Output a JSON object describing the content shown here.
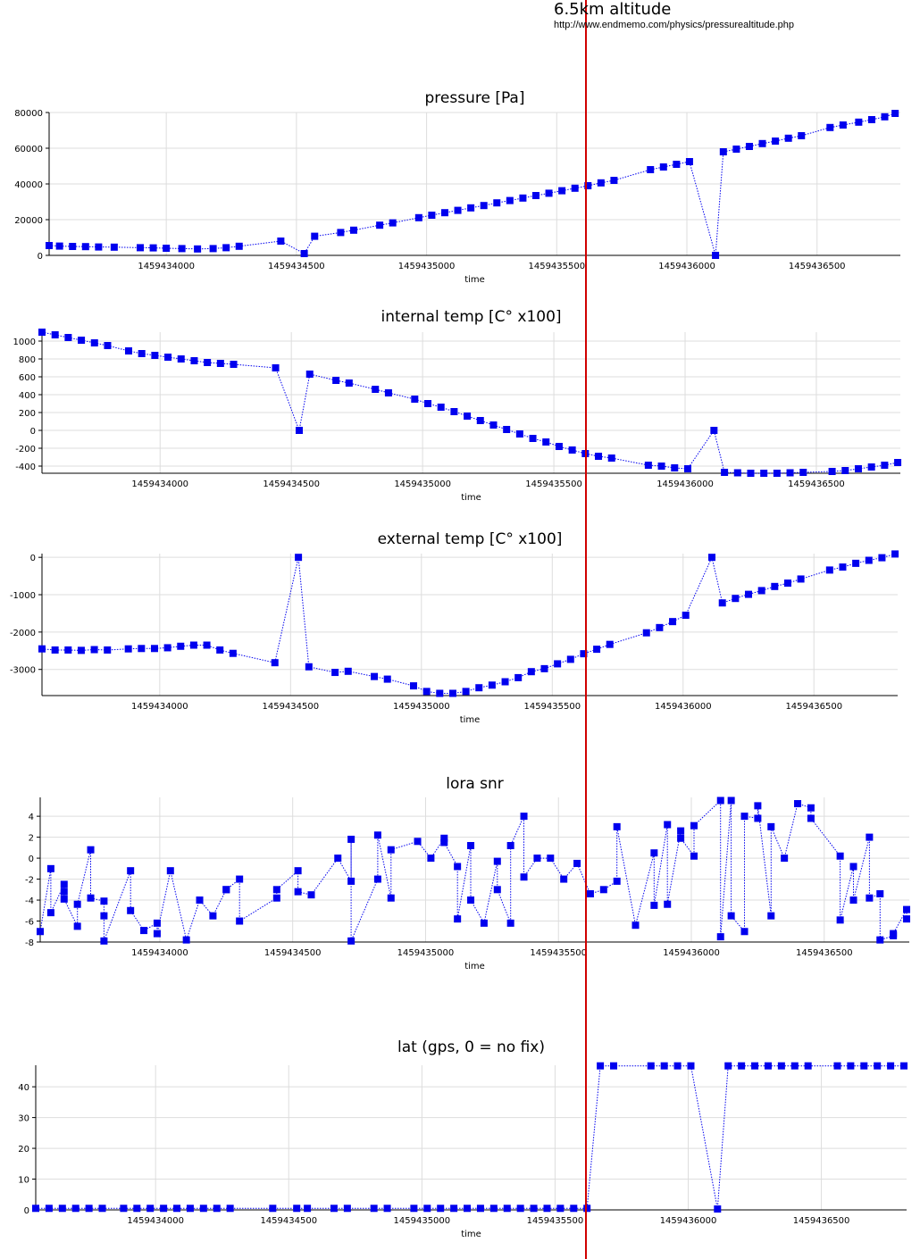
{
  "annotation": {
    "title": "6.5km altitude",
    "url": "http://www.endmemo.com/physics/pressurealtitude.php",
    "marker_x": 1459435600,
    "marker_color": "#d00000"
  },
  "style": {
    "series_color": "#0000ee",
    "grid_color": "#dddddd"
  },
  "chart_data": [
    {
      "type": "line",
      "title": "pressure [Pa]",
      "xlabel": "time",
      "ylabel": "",
      "grid": true,
      "xlim": [
        1459433550,
        1459436820
      ],
      "ylim": [
        0,
        80000
      ],
      "xticks": [
        1459434000,
        1459434500,
        1459435000,
        1459435500,
        1459436000,
        1459436500
      ],
      "xtick_labels": [
        "1459434000",
        "1459434500",
        "1459435000",
        "1459435500",
        "1459436000",
        "1459436500"
      ],
      "yticks": [
        0,
        20000,
        40000,
        60000,
        80000
      ],
      "ytick_labels": [
        "0",
        "20000",
        "40000",
        "60000",
        "80000"
      ],
      "series": [
        {
          "x": [
            1459433550,
            1459433590,
            1459433640,
            1459433690,
            1459433740,
            1459433800,
            1459433900,
            1459433950,
            1459434000,
            1459434060,
            1459434120,
            1459434180,
            1459434230,
            1459434280,
            1459434440,
            1459434530,
            1459434570,
            1459434670,
            1459434720,
            1459434820,
            1459434870,
            1459434970,
            1459435020,
            1459435070,
            1459435120,
            1459435170,
            1459435220,
            1459435270,
            1459435320,
            1459435370,
            1459435420,
            1459435470,
            1459435520,
            1459435570,
            1459435620,
            1459435670,
            1459435720,
            1459435860,
            1459435910,
            1459435960,
            1459436010,
            1459436110,
            1459436140,
            1459436190,
            1459436240,
            1459436290,
            1459436340,
            1459436390,
            1459436440,
            1459436550,
            1459436600,
            1459436660,
            1459436710,
            1459436760,
            1459436800
          ],
          "y": [
            5500,
            5200,
            5000,
            4900,
            4700,
            4600,
            4300,
            4200,
            4000,
            3800,
            3600,
            3800,
            4300,
            5100,
            8000,
            1000,
            10700,
            12800,
            14100,
            16900,
            18200,
            21100,
            22500,
            23900,
            25200,
            26600,
            27900,
            29400,
            30700,
            32100,
            33500,
            34800,
            36200,
            37600,
            39000,
            40600,
            42000,
            48000,
            49500,
            51000,
            52500,
            0,
            58000,
            59500,
            61000,
            62600,
            64000,
            65600,
            67000,
            71600,
            73000,
            74600,
            76000,
            77600,
            79500
          ]
        }
      ]
    },
    {
      "type": "line",
      "title": "internal temp [C° x100]",
      "xlabel": "time",
      "ylabel": "",
      "grid": true,
      "xlim": [
        1459433550,
        1459436820
      ],
      "ylim": [
        -480,
        1100
      ],
      "xticks": [
        1459434000,
        1459434500,
        1459435000,
        1459435500,
        1459436000,
        1459436500
      ],
      "xtick_labels": [
        "1459434000",
        "1459434500",
        "1459435000",
        "1459435500",
        "1459436000",
        "1459436500"
      ],
      "yticks": [
        -400,
        -200,
        0,
        200,
        400,
        600,
        800,
        1000
      ],
      "ytick_labels": [
        "-400",
        "-200",
        "0",
        "200",
        "400",
        "600",
        "800",
        "1000"
      ],
      "series": [
        {
          "x": [
            1459433550,
            1459433600,
            1459433650,
            1459433700,
            1459433750,
            1459433800,
            1459433880,
            1459433930,
            1459433980,
            1459434030,
            1459434080,
            1459434130,
            1459434180,
            1459434230,
            1459434280,
            1459434440,
            1459434530,
            1459434570,
            1459434670,
            1459434720,
            1459434820,
            1459434870,
            1459434970,
            1459435020,
            1459435070,
            1459435120,
            1459435170,
            1459435220,
            1459435270,
            1459435320,
            1459435370,
            1459435420,
            1459435470,
            1459435520,
            1459435570,
            1459435620,
            1459435670,
            1459435720,
            1459435860,
            1459435910,
            1459435960,
            1459436010,
            1459436110,
            1459436150,
            1459436200,
            1459436250,
            1459436300,
            1459436350,
            1459436400,
            1459436450,
            1459436560,
            1459436610,
            1459436660,
            1459436710,
            1459436760,
            1459436810
          ],
          "y": [
            1100,
            1070,
            1040,
            1010,
            980,
            950,
            890,
            860,
            840,
            820,
            800,
            780,
            760,
            750,
            740,
            700,
            0,
            630,
            560,
            530,
            460,
            420,
            350,
            300,
            260,
            210,
            160,
            110,
            60,
            10,
            -40,
            -90,
            -130,
            -180,
            -220,
            -260,
            -290,
            -310,
            -390,
            -400,
            -420,
            -430,
            0,
            -470,
            -475,
            -480,
            -480,
            -480,
            -475,
            -470,
            -460,
            -450,
            -430,
            -410,
            -390,
            -360
          ]
        }
      ]
    },
    {
      "type": "line",
      "title": "external temp [C° x100]",
      "xlabel": "time",
      "ylabel": "",
      "grid": true,
      "xlim": [
        1459433550,
        1459436820
      ],
      "ylim": [
        -3700,
        100
      ],
      "xticks": [
        1459434000,
        1459434500,
        1459435000,
        1459435500,
        1459436000,
        1459436500
      ],
      "xtick_labels": [
        "1459434000",
        "1459434500",
        "1459435000",
        "1459435500",
        "1459436000",
        "1459436500"
      ],
      "yticks": [
        -3000,
        -2000,
        -1000,
        0
      ],
      "ytick_labels": [
        "-3000",
        "-2000",
        "-1000",
        "0"
      ],
      "series": [
        {
          "x": [
            1459433550,
            1459433600,
            1459433650,
            1459433700,
            1459433750,
            1459433800,
            1459433880,
            1459433930,
            1459433980,
            1459434030,
            1459434080,
            1459434130,
            1459434180,
            1459434230,
            1459434280,
            1459434440,
            1459434530,
            1459434570,
            1459434670,
            1459434720,
            1459434820,
            1459434870,
            1459434970,
            1459435020,
            1459435070,
            1459435120,
            1459435170,
            1459435220,
            1459435270,
            1459435320,
            1459435370,
            1459435420,
            1459435470,
            1459435520,
            1459435570,
            1459435620,
            1459435670,
            1459435720,
            1459435860,
            1459435910,
            1459435960,
            1459436010,
            1459436110,
            1459436150,
            1459436200,
            1459436250,
            1459436300,
            1459436350,
            1459436400,
            1459436450,
            1459436560,
            1459436610,
            1459436660,
            1459436710,
            1459436760,
            1459436810
          ],
          "y": [
            -2450,
            -2480,
            -2480,
            -2490,
            -2470,
            -2480,
            -2450,
            -2440,
            -2440,
            -2420,
            -2380,
            -2350,
            -2350,
            -2480,
            -2570,
            -2820,
            0,
            -2930,
            -3080,
            -3050,
            -3190,
            -3260,
            -3440,
            -3590,
            -3640,
            -3640,
            -3590,
            -3490,
            -3420,
            -3330,
            -3220,
            -3060,
            -2980,
            -2850,
            -2730,
            -2580,
            -2460,
            -2330,
            -2020,
            -1880,
            -1720,
            -1550,
            0,
            -1220,
            -1100,
            -990,
            -890,
            -780,
            -690,
            -580,
            -340,
            -260,
            -160,
            -80,
            -10,
            90
          ]
        }
      ]
    },
    {
      "type": "line",
      "title": "lora snr",
      "xlabel": "time",
      "ylabel": "",
      "grid": true,
      "xlim": [
        1459433550,
        1459436820
      ],
      "ylim": [
        -8,
        5.8
      ],
      "xticks": [
        1459434000,
        1459434500,
        1459435000,
        1459435500,
        1459436000,
        1459436500
      ],
      "xtick_labels": [
        "1459434000",
        "1459434500",
        "1459435000",
        "1459435500",
        "1459436000",
        "1459436500"
      ],
      "yticks": [
        -8,
        -6,
        -4,
        -2,
        0,
        2,
        4
      ],
      "ytick_labels": [
        "-8",
        "-6",
        "-4",
        "-2",
        "0",
        "2",
        "4"
      ],
      "series": [
        {
          "x": [
            1459433550,
            1459433590,
            1459433590,
            1459433640,
            1459433640,
            1459433640,
            1459433690,
            1459433690,
            1459433740,
            1459433740,
            1459433790,
            1459433790,
            1459433790,
            1459433890,
            1459433890,
            1459433940,
            1459433990,
            1459433990,
            1459434040,
            1459434100,
            1459434150,
            1459434200,
            1459434250,
            1459434250,
            1459434300,
            1459434300,
            1459434440,
            1459434440,
            1459434520,
            1459434520,
            1459434570,
            1459434670,
            1459434720,
            1459434720,
            1459434720,
            1459434820,
            1459434820,
            1459434870,
            1459434870,
            1459434970,
            1459435020,
            1459435070,
            1459435070,
            1459435120,
            1459435120,
            1459435170,
            1459435170,
            1459435220,
            1459435270,
            1459435270,
            1459435320,
            1459435320,
            1459435370,
            1459435370,
            1459435420,
            1459435470,
            1459435520,
            1459435570,
            1459435620,
            1459435670,
            1459435720,
            1459435720,
            1459435790,
            1459435860,
            1459435860,
            1459435910,
            1459435910,
            1459435960,
            1459435960,
            1459436010,
            1459436010,
            1459436110,
            1459436110,
            1459436150,
            1459436150,
            1459436200,
            1459436200,
            1459436250,
            1459436250,
            1459436300,
            1459436300,
            1459436350,
            1459436400,
            1459436450,
            1459436450,
            1459436560,
            1459436560,
            1459436610,
            1459436610,
            1459436670,
            1459436670,
            1459436710,
            1459436710,
            1459436760,
            1459436760,
            1459436810,
            1459436810
          ],
          "y": [
            -7,
            -1,
            -5.2,
            -2.5,
            -3.2,
            -3.9,
            -6.5,
            -4.4,
            0.8,
            -3.8,
            -4.1,
            -5.5,
            -7.9,
            -1.2,
            -5,
            -6.9,
            -6.2,
            -7.2,
            -1.2,
            -7.8,
            -4,
            -5.5,
            -3,
            -3,
            -2,
            -6,
            -3.8,
            -3,
            -1.2,
            -3.2,
            -3.5,
            0,
            -2.2,
            1.8,
            -7.9,
            -2,
            2.2,
            -3.8,
            0.8,
            1.6,
            0,
            1.9,
            1.5,
            -0.8,
            -5.8,
            1.2,
            -4,
            -6.2,
            -0.3,
            -3,
            -6.2,
            1.2,
            4,
            -1.8,
            0,
            0,
            -2,
            -0.5,
            -3.4,
            -3,
            -2.2,
            3,
            -6.4,
            0.5,
            -4.5,
            3.2,
            -4.4,
            2.6,
            1.9,
            0.2,
            3.1,
            5.5,
            -7.5,
            5.5,
            -5.5,
            -7,
            4,
            3.8,
            5,
            -5.5,
            3,
            0,
            5.2,
            4.8,
            3.8,
            0.2,
            -5.9,
            -0.8,
            -4,
            2,
            -3.8,
            -3.4,
            -7.8,
            -7.4,
            -7.2,
            -4.9,
            -5.8
          ]
        }
      ]
    },
    {
      "type": "line",
      "title": "lat (gps, 0 = no fix)",
      "xlabel": "time",
      "ylabel": "",
      "grid": true,
      "xlim": [
        1459433550,
        1459436820
      ],
      "ylim": [
        0,
        47
      ],
      "xticks": [
        1459434000,
        1459434500,
        1459435000,
        1459435500,
        1459436000,
        1459436500
      ],
      "xtick_labels": [
        "1459434000",
        "1459434500",
        "1459435000",
        "1459435500",
        "1459436000",
        "1459436500"
      ],
      "yticks": [
        0,
        10,
        20,
        30,
        40
      ],
      "ytick_labels": [
        "0",
        "10",
        "20",
        "30",
        "40"
      ],
      "series": [
        {
          "x": [
            1459433550,
            1459433600,
            1459433650,
            1459433700,
            1459433750,
            1459433800,
            1459433880,
            1459433930,
            1459433980,
            1459434030,
            1459434080,
            1459434130,
            1459434180,
            1459434230,
            1459434280,
            1459434440,
            1459434530,
            1459434570,
            1459434670,
            1459434720,
            1459434820,
            1459434870,
            1459434970,
            1459435020,
            1459435070,
            1459435120,
            1459435170,
            1459435220,
            1459435270,
            1459435320,
            1459435370,
            1459435420,
            1459435470,
            1459435520,
            1459435570,
            1459435620,
            1459435670,
            1459435720,
            1459435860,
            1459435910,
            1459435960,
            1459436010,
            1459436110,
            1459436150,
            1459436200,
            1459436250,
            1459436300,
            1459436350,
            1459436400,
            1459436450,
            1459436560,
            1459436610,
            1459436660,
            1459436710,
            1459436760,
            1459436810
          ],
          "y": [
            0.5,
            0.5,
            0.5,
            0.5,
            0.5,
            0.5,
            0.5,
            0.5,
            0.5,
            0.5,
            0.5,
            0.5,
            0.5,
            0.5,
            0.5,
            0.5,
            0.5,
            0.5,
            0.5,
            0.5,
            0.5,
            0.5,
            0.5,
            0.5,
            0.5,
            0.5,
            0.5,
            0.5,
            0.5,
            0.5,
            0.5,
            0.5,
            0.5,
            0.5,
            0.5,
            0.5,
            46.8,
            46.8,
            46.8,
            46.8,
            46.8,
            46.8,
            0.3,
            46.8,
            46.8,
            46.8,
            46.8,
            46.8,
            46.8,
            46.8,
            46.8,
            46.8,
            46.8,
            46.8,
            46.8,
            46.8
          ]
        }
      ]
    }
  ]
}
